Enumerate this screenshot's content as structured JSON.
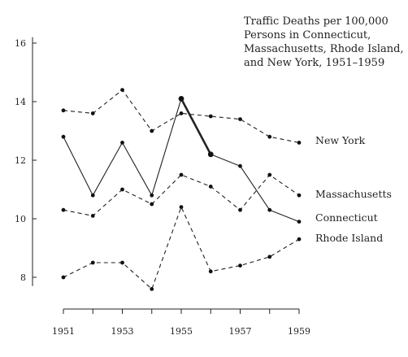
{
  "chart_data": {
    "type": "line",
    "title_lines": [
      "Traffic Deaths per 100,000",
      "Persons in Connecticut,",
      "Massachusetts, Rhode Island,",
      "and New York, 1951–1959"
    ],
    "x": [
      1951,
      1952,
      1953,
      1954,
      1955,
      1956,
      1957,
      1958,
      1959
    ],
    "x_tick_labels": [
      "1951",
      "1953",
      "1955",
      "1957",
      "1959"
    ],
    "y_tick_labels": [
      "8",
      "10",
      "12",
      "14",
      "16"
    ],
    "ylim": [
      7.7,
      16.2
    ],
    "grid": false,
    "series": [
      {
        "name": "New York",
        "style": "dashed",
        "values": [
          13.7,
          13.6,
          14.4,
          13.0,
          13.6,
          13.5,
          13.4,
          12.8,
          12.6
        ]
      },
      {
        "name": "Massachusetts",
        "style": "dashed",
        "values": [
          10.3,
          10.1,
          11.0,
          10.5,
          11.5,
          11.1,
          10.3,
          11.5,
          10.8
        ]
      },
      {
        "name": "Connecticut",
        "style": "solid",
        "values": [
          12.8,
          10.8,
          12.6,
          10.8,
          14.1,
          12.2,
          11.8,
          10.3,
          9.9
        ]
      },
      {
        "name": "Rhode Island",
        "style": "dashed",
        "values": [
          8.0,
          8.5,
          8.5,
          7.6,
          10.4,
          8.2,
          8.4,
          8.7,
          9.3
        ]
      }
    ]
  }
}
